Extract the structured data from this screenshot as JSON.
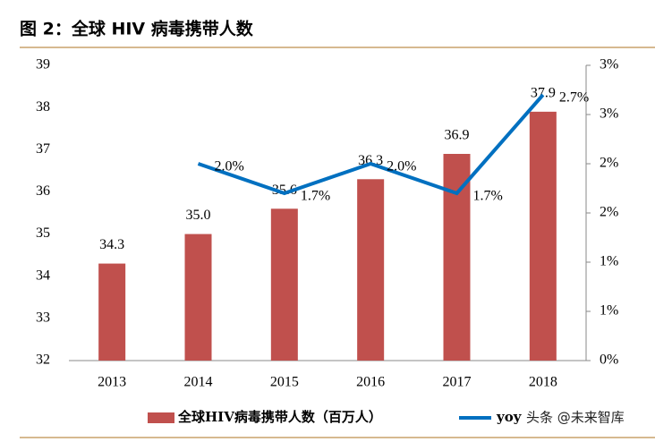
{
  "chart_data": {
    "type": "bar_line",
    "title": "图 2：全球 HIV 病毒携带人数",
    "watermark": "头条 @未来智库",
    "categories": [
      "2013",
      "2014",
      "2015",
      "2016",
      "2017",
      "2018"
    ],
    "series": [
      {
        "name": "全球HIV病毒携带人数（百万人）",
        "type": "bar",
        "color": "#c0504d",
        "values": [
          34.3,
          35.0,
          35.6,
          36.3,
          36.9,
          37.9
        ],
        "value_labels": [
          "34.3",
          "35.0",
          "35.6",
          "36.3",
          "36.9",
          "37.9"
        ]
      },
      {
        "name": "yoy",
        "type": "line",
        "axis": "y2",
        "color": "#0070c0",
        "values": [
          null,
          2.0,
          1.7,
          2.0,
          1.7,
          2.7
        ],
        "value_labels": [
          null,
          "2.0%",
          "1.7%",
          "2.0%",
          "1.7%",
          "2.7%"
        ]
      }
    ],
    "ylim": [
      32,
      39
    ],
    "yticks": [
      32,
      33,
      34,
      35,
      36,
      37,
      38,
      39
    ],
    "y2lim": [
      0,
      3
    ],
    "y2ticks": [
      {
        "value": 0,
        "label": "0%"
      },
      {
        "value": 0.5,
        "label": "1%"
      },
      {
        "value": 1,
        "label": "1%"
      },
      {
        "value": 1.5,
        "label": "2%"
      },
      {
        "value": 2,
        "label": "2%"
      },
      {
        "value": 2.5,
        "label": "3%"
      },
      {
        "value": 3,
        "label": "3%"
      }
    ]
  }
}
